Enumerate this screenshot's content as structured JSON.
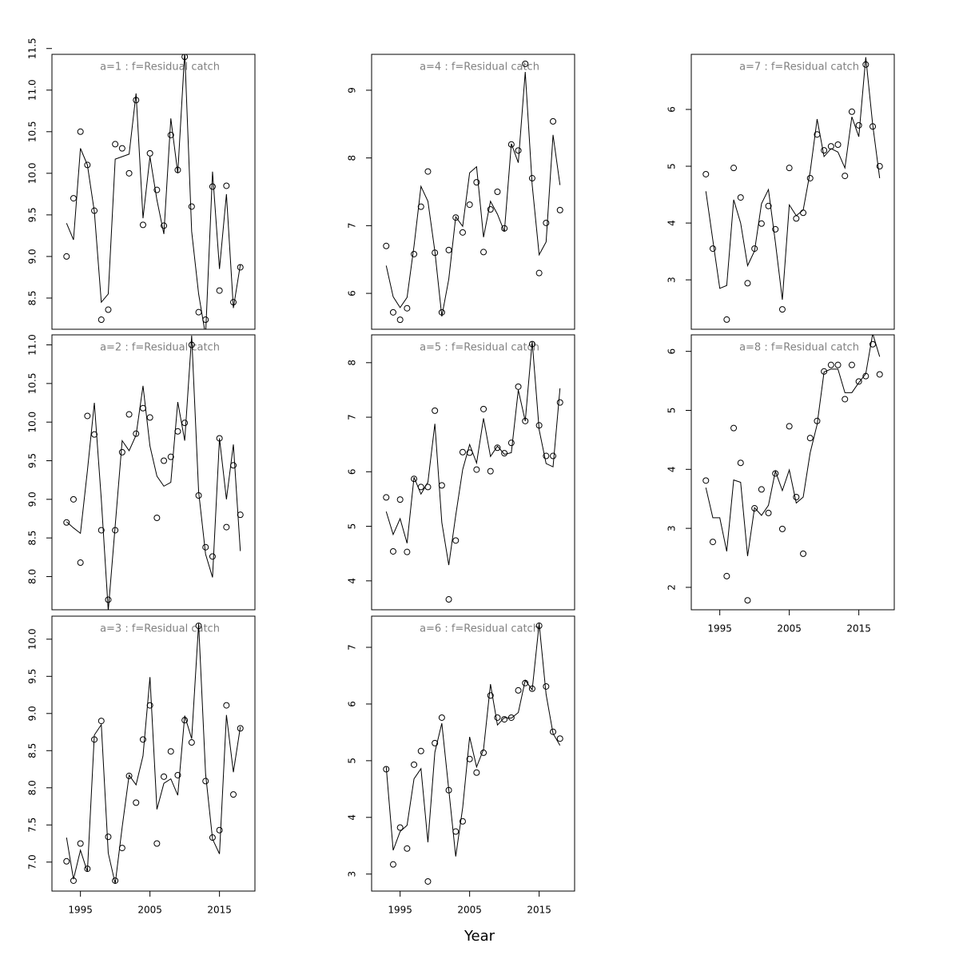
{
  "xlabel": "Year",
  "chart_data": [
    {
      "type": "line",
      "title": "a=1  :  f=Residual catch",
      "show_x_axis": false,
      "x": [
        1993,
        1994,
        1995,
        1996,
        1997,
        1998,
        1999,
        2000,
        2001,
        2002,
        2003,
        2004,
        2005,
        2006,
        2007,
        2008,
        2009,
        2010,
        2011,
        2012,
        2013,
        2014,
        2015,
        2016,
        2017,
        2018
      ],
      "series": [
        {
          "style": "points",
          "color": "#000000",
          "values": [
            9.0,
            9.7,
            10.5,
            10.1,
            9.55,
            8.24,
            8.36,
            10.35,
            10.3,
            10.0,
            10.88,
            9.38,
            10.24,
            9.8,
            9.37,
            10.46,
            10.04,
            11.4,
            9.6,
            8.33,
            8.24,
            9.84,
            8.59,
            9.85,
            8.45,
            8.87
          ]
        },
        {
          "style": "line",
          "color": "#000000",
          "values": [
            9.4,
            9.2,
            10.3,
            10.1,
            9.54,
            8.45,
            8.55,
            10.17,
            10.2,
            10.23,
            10.96,
            9.46,
            10.2,
            9.68,
            9.27,
            10.66,
            10.0,
            11.46,
            9.3,
            8.55,
            8.05,
            10.02,
            8.85,
            9.75,
            8.38,
            8.9
          ]
        }
      ],
      "xlim": [
        1990.9,
        2020.1
      ],
      "ylim": [
        8.125,
        11.43
      ],
      "xticks": [
        1995,
        2005,
        2015
      ],
      "yticks": [
        8.5,
        {
          "value": 9,
          "label": "9.0"
        },
        9.5,
        {
          "value": 10,
          "label": "10.0"
        },
        10.5,
        {
          "value": 11,
          "label": "11.0"
        },
        11.5
      ]
    },
    {
      "type": "line",
      "title": "a=2  :  f=Residual catch",
      "show_x_axis": false,
      "x": [
        1993,
        1994,
        1995,
        1996,
        1997,
        1998,
        1999,
        2000,
        2001,
        2002,
        2003,
        2004,
        2005,
        2006,
        2007,
        2008,
        2009,
        2010,
        2011,
        2012,
        2013,
        2014,
        2015,
        2016,
        2017,
        2018
      ],
      "series": [
        {
          "style": "points",
          "color": "#000000",
          "values": [
            8.7,
            9.0,
            8.18,
            10.08,
            9.84,
            8.6,
            7.7,
            8.6,
            9.61,
            10.1,
            9.85,
            10.18,
            10.06,
            8.76,
            9.5,
            9.55,
            9.88,
            9.99,
            11.0,
            9.05,
            8.38,
            8.26,
            9.79,
            8.64,
            9.44,
            8.8
          ]
        },
        {
          "style": "line",
          "color": "#000000",
          "values": [
            8.71,
            8.63,
            8.56,
            9.37,
            10.25,
            9.0,
            7.56,
            8.66,
            9.76,
            9.63,
            9.83,
            10.47,
            9.69,
            9.3,
            9.17,
            9.22,
            10.26,
            9.76,
            11.12,
            9.1,
            8.29,
            7.99,
            9.79,
            9.0,
            9.71,
            8.33
          ]
        }
      ],
      "xlim": [
        1990.9,
        2020.1
      ],
      "ylim": [
        7.57,
        11.13
      ],
      "xticks": [
        1995,
        2005,
        2015
      ],
      "yticks": [
        {
          "value": 8,
          "label": "8.0"
        },
        8.5,
        {
          "value": 9,
          "label": "9.0"
        },
        9.5,
        {
          "value": 10,
          "label": "10.0"
        },
        10.5,
        {
          "value": 11,
          "label": "11.0"
        }
      ]
    },
    {
      "type": "line",
      "title": "a=3  :  f=Residual catch",
      "show_x_axis": true,
      "x": [
        1993,
        1994,
        1995,
        1996,
        1997,
        1998,
        1999,
        2000,
        2001,
        2002,
        2003,
        2004,
        2005,
        2006,
        2007,
        2008,
        2009,
        2010,
        2011,
        2012,
        2013,
        2014,
        2015,
        2016,
        2017,
        2018
      ],
      "series": [
        {
          "style": "points",
          "color": "#000000",
          "values": [
            7.01,
            6.75,
            7.25,
            6.91,
            8.65,
            8.9,
            7.34,
            6.75,
            7.19,
            8.16,
            7.8,
            8.65,
            9.11,
            7.25,
            8.15,
            8.49,
            8.17,
            8.91,
            8.61,
            10.18,
            8.09,
            7.33,
            7.43,
            9.11,
            7.91,
            8.8
          ]
        },
        {
          "style": "line",
          "color": "#000000",
          "values": [
            7.33,
            6.77,
            7.16,
            6.87,
            8.71,
            8.85,
            7.12,
            6.71,
            7.47,
            8.17,
            8.04,
            8.43,
            9.49,
            7.71,
            8.06,
            8.12,
            7.9,
            8.97,
            8.66,
            10.21,
            8.19,
            7.31,
            7.11,
            8.98,
            8.21,
            8.82
          ]
        }
      ],
      "xlim": [
        1990.9,
        2020.1
      ],
      "ylim": [
        6.61,
        10.31
      ],
      "xticks": [
        1995,
        2005,
        2015
      ],
      "yticks": [
        {
          "value": 7,
          "label": "7.0"
        },
        7.5,
        {
          "value": 8,
          "label": "8.0"
        },
        8.5,
        {
          "value": 9,
          "label": "9.0"
        },
        9.5,
        {
          "value": 10,
          "label": "10.0"
        }
      ]
    },
    {
      "type": "line",
      "title": "a=4  :  f=Residual catch",
      "show_x_axis": false,
      "x": [
        1993,
        1994,
        1995,
        1996,
        1997,
        1998,
        1999,
        2000,
        2001,
        2002,
        2003,
        2004,
        2005,
        2006,
        2007,
        2008,
        2009,
        2010,
        2011,
        2012,
        2013,
        2014,
        2015,
        2016,
        2017,
        2018
      ],
      "series": [
        {
          "style": "points",
          "color": "#000000",
          "values": [
            6.7,
            5.72,
            5.61,
            5.78,
            6.58,
            7.28,
            7.8,
            6.6,
            5.72,
            6.64,
            7.12,
            6.9,
            7.31,
            7.64,
            6.61,
            7.24,
            7.5,
            6.96,
            8.2,
            8.11,
            9.39,
            7.7,
            6.3,
            7.04,
            8.54,
            7.23
          ]
        },
        {
          "style": "line",
          "color": "#000000",
          "values": [
            6.41,
            5.95,
            5.79,
            5.94,
            6.7,
            7.58,
            7.36,
            6.62,
            5.66,
            6.21,
            7.13,
            6.99,
            7.78,
            7.87,
            6.83,
            7.36,
            7.17,
            6.91,
            8.21,
            7.93,
            9.27,
            7.6,
            6.57,
            6.76,
            8.34,
            7.6
          ]
        }
      ],
      "xlim": [
        1990.9,
        2020.1
      ],
      "ylim": [
        5.47,
        9.53
      ],
      "xticks": [
        1995,
        2005,
        2015
      ],
      "yticks": [
        6,
        7,
        8,
        9
      ]
    },
    {
      "type": "line",
      "title": "a=5  :  f=Residual catch",
      "show_x_axis": false,
      "x": [
        1993,
        1994,
        1995,
        1996,
        1997,
        1998,
        1999,
        2000,
        2001,
        2002,
        2003,
        2004,
        2005,
        2006,
        2007,
        2008,
        2009,
        2010,
        2011,
        2012,
        2013,
        2014,
        2015,
        2016,
        2017,
        2018
      ],
      "series": [
        {
          "style": "points",
          "color": "#000000",
          "values": [
            5.53,
            4.54,
            5.49,
            4.53,
            5.87,
            5.72,
            5.72,
            7.12,
            5.75,
            3.66,
            4.74,
            6.36,
            6.35,
            6.04,
            7.15,
            6.01,
            6.44,
            6.34,
            6.53,
            7.56,
            6.93,
            8.34,
            6.85,
            6.29,
            6.29,
            7.27
          ]
        },
        {
          "style": "line",
          "color": "#000000",
          "values": [
            5.27,
            4.85,
            5.14,
            4.69,
            5.9,
            5.59,
            5.81,
            6.88,
            5.07,
            4.29,
            5.2,
            6.04,
            6.5,
            6.16,
            6.98,
            6.28,
            6.47,
            6.32,
            6.35,
            7.5,
            6.93,
            8.39,
            6.77,
            6.15,
            6.09,
            7.53
          ]
        }
      ],
      "xlim": [
        1990.9,
        2020.1
      ],
      "ylim": [
        3.47,
        8.51
      ],
      "xticks": [
        1995,
        2005,
        2015
      ],
      "yticks": [
        4,
        5,
        6,
        7,
        8
      ]
    },
    {
      "type": "line",
      "title": "a=6  :  f=Residual catch",
      "show_x_axis": true,
      "x": [
        1993,
        1994,
        1995,
        1996,
        1997,
        1998,
        1999,
        2000,
        2001,
        2002,
        2003,
        2004,
        2005,
        2006,
        2007,
        2008,
        2009,
        2010,
        2011,
        2012,
        2013,
        2014,
        2015,
        2016,
        2017,
        2018
      ],
      "series": [
        {
          "style": "points",
          "color": "#000000",
          "values": [
            4.85,
            3.17,
            3.82,
            3.45,
            4.93,
            5.17,
            2.87,
            5.31,
            5.76,
            4.48,
            3.75,
            3.93,
            5.03,
            4.79,
            5.14,
            6.15,
            5.76,
            5.73,
            5.76,
            6.24,
            6.37,
            6.27,
            7.38,
            6.31,
            5.51,
            5.39
          ]
        },
        {
          "style": "line",
          "color": "#000000",
          "values": [
            4.89,
            3.42,
            3.75,
            3.86,
            4.68,
            4.86,
            3.56,
            5.15,
            5.66,
            4.49,
            3.31,
            4.17,
            5.42,
            4.89,
            5.2,
            6.35,
            5.63,
            5.76,
            5.75,
            5.85,
            6.42,
            6.25,
            7.42,
            6.17,
            5.48,
            5.27
          ]
        }
      ],
      "xlim": [
        1990.9,
        2020.1
      ],
      "ylim": [
        2.7,
        7.55
      ],
      "xticks": [
        1995,
        2005,
        2015
      ],
      "yticks": [
        3,
        4,
        5,
        6,
        7
      ]
    },
    {
      "type": "line",
      "title": "a=7  :  f=Residual catch",
      "show_x_axis": false,
      "x": [
        1993,
        1994,
        1995,
        1996,
        1997,
        1998,
        1999,
        2000,
        2001,
        2002,
        2003,
        2004,
        2005,
        2006,
        2007,
        2008,
        2009,
        2010,
        2011,
        2012,
        2013,
        2014,
        2015,
        2016,
        2017,
        2018
      ],
      "series": [
        {
          "style": "points",
          "color": "#000000",
          "values": [
            4.86,
            3.55,
            null,
            2.3,
            4.97,
            4.45,
            2.94,
            3.55,
            3.99,
            4.3,
            3.89,
            2.48,
            4.97,
            4.08,
            4.18,
            4.79,
            5.56,
            5.28,
            5.35,
            5.38,
            4.83,
            5.96,
            5.72,
            6.79,
            5.7,
            5.0
          ]
        },
        {
          "style": "line",
          "color": "#000000",
          "values": [
            4.56,
            3.7,
            2.85,
            2.9,
            4.41,
            4.0,
            3.25,
            3.51,
            4.34,
            4.59,
            3.66,
            2.65,
            4.32,
            4.13,
            4.23,
            4.9,
            5.83,
            5.17,
            5.31,
            5.25,
            4.97,
            5.87,
            5.52,
            6.92,
            5.73,
            4.79
          ]
        }
      ],
      "xlim": [
        1990.9,
        2020.1
      ],
      "ylim": [
        2.13,
        6.97
      ],
      "xticks": [
        1995,
        2005,
        2015
      ],
      "yticks": [
        3,
        4,
        5,
        6
      ]
    },
    {
      "type": "line",
      "title": "a=8  :  f=Residual catch",
      "show_x_axis": true,
      "x": [
        1993,
        1994,
        1995,
        1996,
        1997,
        1998,
        1999,
        2000,
        2001,
        2002,
        2003,
        2004,
        2005,
        2006,
        2007,
        2008,
        2009,
        2010,
        2011,
        2012,
        2013,
        2014,
        2015,
        2016,
        2017,
        2018
      ],
      "series": [
        {
          "style": "points",
          "color": "#000000",
          "values": [
            3.81,
            2.77,
            null,
            2.19,
            4.7,
            4.11,
            1.78,
            3.34,
            3.66,
            3.26,
            3.93,
            2.99,
            4.73,
            3.53,
            2.57,
            4.53,
            4.82,
            5.66,
            5.77,
            5.77,
            5.19,
            5.77,
            5.49,
            5.58,
            6.12,
            5.61
          ]
        },
        {
          "style": "line",
          "color": "#000000",
          "values": [
            3.69,
            3.18,
            3.18,
            2.61,
            3.82,
            3.78,
            2.53,
            3.35,
            3.22,
            3.39,
            3.97,
            3.64,
            3.99,
            3.43,
            3.53,
            4.28,
            4.76,
            5.65,
            5.7,
            5.7,
            5.3,
            5.3,
            5.47,
            5.62,
            6.3,
            5.91
          ]
        }
      ],
      "xlim": [
        1990.9,
        2020.1
      ],
      "ylim": [
        1.62,
        6.28
      ],
      "xticks": [
        1995,
        2005,
        2015
      ],
      "yticks": [
        2,
        3,
        4,
        5,
        6
      ]
    }
  ]
}
